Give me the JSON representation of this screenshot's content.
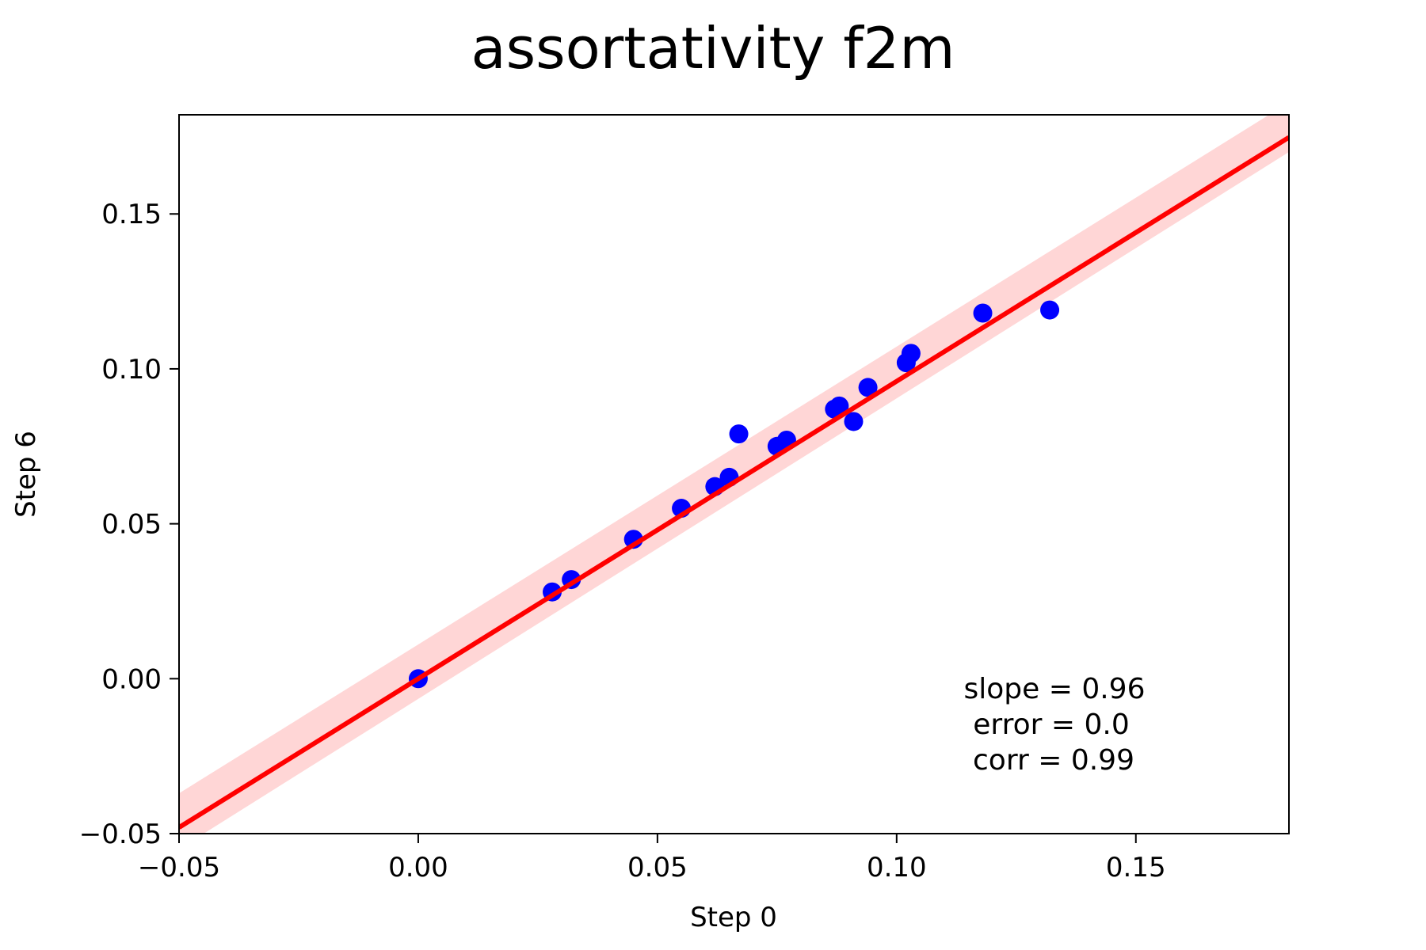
{
  "chart_data": {
    "type": "scatter",
    "title": "assortativity f2m",
    "xlabel": "Step 0",
    "ylabel": "Step 6",
    "xlim": [
      -0.05,
      0.182
    ],
    "ylim": [
      -0.05,
      0.182
    ],
    "xticks": [
      -0.05,
      0.0,
      0.05,
      0.1,
      0.15
    ],
    "yticks": [
      -0.05,
      0.0,
      0.05,
      0.1,
      0.15
    ],
    "xtick_labels": [
      "−0.05",
      "0.00",
      "0.05",
      "0.10",
      "0.15"
    ],
    "ytick_labels": [
      "−0.05",
      "0.00",
      "0.05",
      "0.10",
      "0.15"
    ],
    "grid": false,
    "legend": "none",
    "series": [
      {
        "color": "#0000ff",
        "points": [
          {
            "x": 0.0,
            "y": 0.0
          },
          {
            "x": 0.028,
            "y": 0.028
          },
          {
            "x": 0.032,
            "y": 0.032
          },
          {
            "x": 0.045,
            "y": 0.045
          },
          {
            "x": 0.055,
            "y": 0.055
          },
          {
            "x": 0.062,
            "y": 0.062
          },
          {
            "x": 0.065,
            "y": 0.065
          },
          {
            "x": 0.067,
            "y": 0.079
          },
          {
            "x": 0.075,
            "y": 0.075
          },
          {
            "x": 0.077,
            "y": 0.077
          },
          {
            "x": 0.087,
            "y": 0.087
          },
          {
            "x": 0.088,
            "y": 0.088
          },
          {
            "x": 0.091,
            "y": 0.083
          },
          {
            "x": 0.094,
            "y": 0.094
          },
          {
            "x": 0.102,
            "y": 0.102
          },
          {
            "x": 0.103,
            "y": 0.105
          },
          {
            "x": 0.118,
            "y": 0.118
          },
          {
            "x": 0.132,
            "y": 0.119
          }
        ]
      }
    ],
    "regression": {
      "slope": 0.96,
      "intercept": 0.0,
      "line_color": "#ff0000",
      "band_color": "#ffcccc",
      "x_range": [
        -0.05,
        0.182
      ],
      "band_lower": [
        -0.055,
        0.17
      ],
      "band_upper": [
        -0.037,
        0.186
      ]
    },
    "annotations": [
      "slope = 0.96",
      "error = 0.0",
      "corr = 0.99"
    ]
  }
}
